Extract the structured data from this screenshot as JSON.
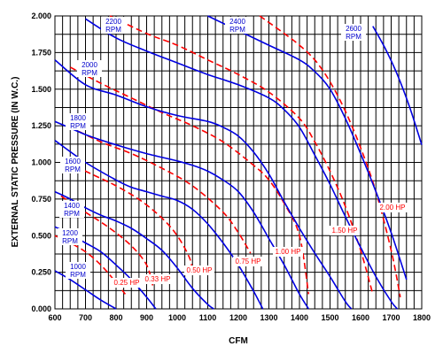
{
  "chart_data": {
    "type": "line",
    "xlabel": "CFM",
    "ylabel": "EXTERNAL STATIC PRESSURE (IN W.C.)",
    "xlim": [
      600,
      1800
    ],
    "ylim": [
      0,
      2.0
    ],
    "x_ticks": [
      "600",
      "700",
      "800",
      "900",
      "1000",
      "1100",
      "1200",
      "1300",
      "1400",
      "1500",
      "1600",
      "1700",
      "1800"
    ],
    "y_ticks": [
      "0.000",
      "0.250",
      "0.500",
      "0.750",
      "1.000",
      "1.250",
      "1.500",
      "1.750",
      "2.000"
    ],
    "grid": true,
    "rpm_series": [
      {
        "label_top": "1000",
        "label_bottom": "RPM",
        "x": [
          600,
          650,
          700,
          750,
          800
        ],
        "y": [
          0.26,
          0.2,
          0.13,
          0.06,
          0.0
        ]
      },
      {
        "label_top": "1200",
        "label_bottom": "RPM",
        "x": [
          600,
          650,
          700,
          750,
          800,
          850,
          900,
          930
        ],
        "y": [
          0.56,
          0.51,
          0.45,
          0.39,
          0.3,
          0.2,
          0.08,
          0.0
        ]
      },
      {
        "label_top": "1400",
        "label_bottom": "RPM",
        "x": [
          600,
          650,
          700,
          750,
          800,
          850,
          900,
          950,
          1000,
          1050,
          1100,
          1120
        ],
        "y": [
          0.8,
          0.75,
          0.69,
          0.64,
          0.6,
          0.55,
          0.48,
          0.4,
          0.28,
          0.14,
          0.03,
          0.0
        ]
      },
      {
        "label_top": "1600",
        "label_bottom": "RPM",
        "x": [
          600,
          700,
          800,
          850,
          900,
          950,
          1000,
          1050,
          1100,
          1150,
          1200,
          1250,
          1280
        ],
        "y": [
          1.15,
          1.0,
          0.88,
          0.83,
          0.8,
          0.77,
          0.74,
          0.68,
          0.58,
          0.45,
          0.3,
          0.12,
          0.0
        ]
      },
      {
        "label_top": "1800",
        "label_bottom": "RPM",
        "x": [
          600,
          700,
          800,
          900,
          1000,
          1050,
          1100,
          1150,
          1200,
          1250,
          1300,
          1350,
          1400,
          1430
        ],
        "y": [
          1.28,
          1.19,
          1.12,
          1.06,
          1.01,
          0.98,
          0.94,
          0.88,
          0.8,
          0.66,
          0.48,
          0.3,
          0.1,
          0.0
        ]
      },
      {
        "label_top": "2000",
        "label_bottom": "RPM",
        "x": [
          600,
          700,
          800,
          900,
          1000,
          1100,
          1150,
          1200,
          1250,
          1300,
          1350,
          1400,
          1450,
          1500,
          1550,
          1570
        ],
        "y": [
          1.7,
          1.53,
          1.46,
          1.38,
          1.32,
          1.28,
          1.24,
          1.18,
          1.07,
          0.92,
          0.73,
          0.55,
          0.38,
          0.22,
          0.05,
          0.0
        ]
      },
      {
        "label_top": "2200",
        "label_bottom": "RPM",
        "x": [
          700,
          800,
          900,
          1000,
          1100,
          1200,
          1300,
          1350,
          1400,
          1450,
          1500,
          1550,
          1600,
          1650,
          1700,
          1720
        ],
        "y": [
          1.98,
          1.85,
          1.76,
          1.68,
          1.6,
          1.53,
          1.44,
          1.36,
          1.24,
          1.05,
          0.85,
          0.63,
          0.42,
          0.22,
          0.05,
          0.0
        ]
      },
      {
        "label_top": "2400",
        "label_bottom": "RPM",
        "x": [
          1100,
          1200,
          1300,
          1400,
          1450,
          1500,
          1550,
          1600,
          1650,
          1700,
          1750
        ],
        "y": [
          2.0,
          1.9,
          1.8,
          1.7,
          1.62,
          1.5,
          1.3,
          1.06,
          0.8,
          0.52,
          0.2
        ]
      },
      {
        "label_top": "2600",
        "label_bottom": "RPM",
        "x": [
          1640,
          1680,
          1720,
          1760,
          1800
        ],
        "y": [
          1.93,
          1.78,
          1.6,
          1.38,
          1.12
        ]
      }
    ],
    "hp_series": [
      {
        "label": "0.25 HP",
        "x": [
          600,
          650,
          700,
          750,
          800,
          830
        ],
        "y": [
          0.5,
          0.45,
          0.39,
          0.3,
          0.18,
          0.1
        ]
      },
      {
        "label": "0.33 HP",
        "x": [
          620,
          700,
          780,
          850,
          900,
          920
        ],
        "y": [
          0.77,
          0.66,
          0.55,
          0.43,
          0.3,
          0.16
        ]
      },
      {
        "label": "0.50 HP",
        "x": [
          640,
          720,
          800,
          880,
          950,
          1000,
          1040,
          1050
        ],
        "y": [
          1.0,
          0.92,
          0.84,
          0.74,
          0.62,
          0.5,
          0.35,
          0.25
        ]
      },
      {
        "label": "0.75 HP",
        "x": [
          650,
          750,
          850,
          950,
          1050,
          1150,
          1200,
          1240
        ],
        "y": [
          1.24,
          1.14,
          1.06,
          0.96,
          0.84,
          0.66,
          0.52,
          0.38
        ]
      },
      {
        "label": "1.00 HP",
        "x": [
          650,
          750,
          850,
          950,
          1050,
          1150,
          1250,
          1300,
          1350,
          1400,
          1430
        ],
        "y": [
          1.65,
          1.54,
          1.44,
          1.34,
          1.25,
          1.14,
          0.98,
          0.88,
          0.72,
          0.5,
          0.1
        ]
      },
      {
        "label": "1.50 HP",
        "x": [
          780,
          900,
          1000,
          1100,
          1200,
          1300,
          1400,
          1450,
          1500,
          1550,
          1600,
          1640
        ],
        "y": [
          2.0,
          1.88,
          1.8,
          1.7,
          1.6,
          1.48,
          1.3,
          1.14,
          0.94,
          0.7,
          0.4,
          0.1
        ]
      },
      {
        "label": "2.00 HP",
        "x": [
          1270,
          1350,
          1400,
          1450,
          1500,
          1550,
          1600,
          1650,
          1700,
          1730
        ],
        "y": [
          2.0,
          1.88,
          1.8,
          1.7,
          1.55,
          1.35,
          1.1,
          0.8,
          0.4,
          0.08
        ]
      }
    ]
  }
}
